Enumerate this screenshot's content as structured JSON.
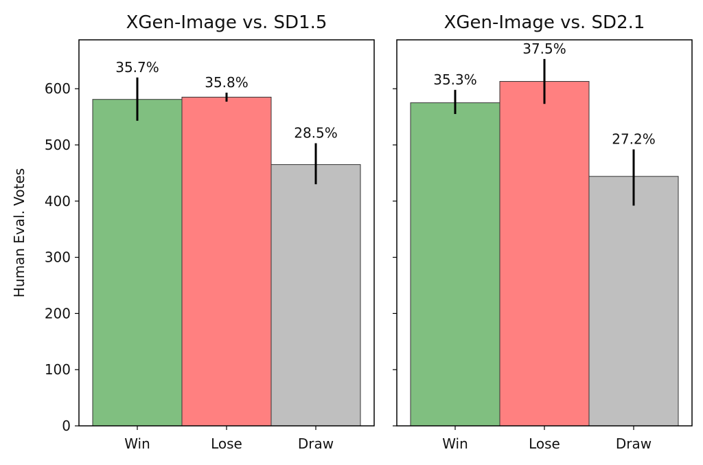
{
  "chart_data": [
    {
      "type": "bar",
      "title": "XGen-Image vs. SD1.5",
      "categories": [
        "Win",
        "Lose",
        "Draw"
      ],
      "values": [
        581,
        585,
        465
      ],
      "errors": [
        [
          543,
          620
        ],
        [
          577,
          593
        ],
        [
          430,
          503
        ]
      ],
      "labels": [
        "35.7%",
        "35.8%",
        "28.5%"
      ],
      "colors": [
        "#80bf80",
        "#ff8080",
        "#bfbfbf"
      ],
      "ylabel": "Human Eval. Votes",
      "yticks": [
        0,
        100,
        200,
        300,
        400,
        500,
        600
      ],
      "ylim": [
        0,
        687
      ],
      "grid": false
    },
    {
      "type": "bar",
      "title": "XGen-Image vs. SD2.1",
      "categories": [
        "Win",
        "Lose",
        "Draw"
      ],
      "values": [
        575,
        613,
        444
      ],
      "errors": [
        [
          555,
          598
        ],
        [
          573,
          653
        ],
        [
          392,
          492
        ]
      ],
      "labels": [
        "35.3%",
        "37.5%",
        "27.2%"
      ],
      "colors": [
        "#80bf80",
        "#ff8080",
        "#bfbfbf"
      ],
      "ylim": [
        0,
        687
      ],
      "grid": false
    }
  ]
}
